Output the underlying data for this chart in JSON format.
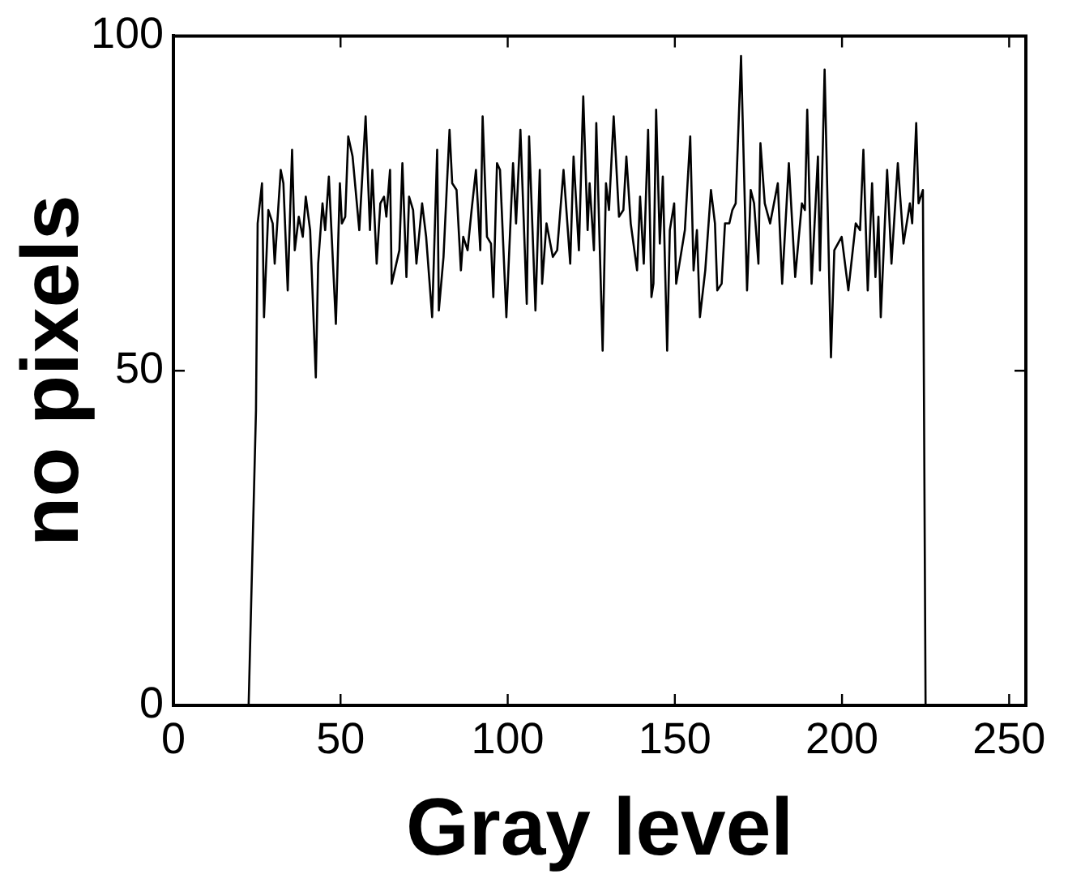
{
  "chart_data": {
    "type": "line",
    "xlabel": "Gray level",
    "ylabel": "no pixels",
    "grid": false,
    "legend": false,
    "xlim": [
      0,
      255
    ],
    "xticks": [
      0,
      50,
      100,
      150,
      200,
      250
    ],
    "ylim": [
      0,
      100
    ],
    "yticks": [
      0,
      50,
      100
    ],
    "series": [
      {
        "color": "#000000",
        "x": [
          22.5,
          24.7,
          25.2,
          26.5,
          27.1,
          28.4,
          29.7,
          30.3,
          32.1,
          32.9,
          34.2,
          35.5,
          36.3,
          37.5,
          38.7,
          39.6,
          40.9,
          42.6,
          43.3,
          44.6,
          45.4,
          46.5,
          48.6,
          49.8,
          50.4,
          51.4,
          52.3,
          53.6,
          55.6,
          57.5,
          58.8,
          59.5,
          60.8,
          61.9,
          63,
          63.7,
          64.8,
          65.3,
          67.6,
          68.5,
          69.7,
          70.5,
          71.7,
          72.7,
          74.4,
          75.6,
          77.4,
          78.9,
          79.4,
          80.8,
          82.6,
          83.4,
          84.7,
          86,
          86.7,
          88,
          89.2,
          90.5,
          91.8,
          92.5,
          93.8,
          95,
          95.7,
          96.8,
          97.7,
          99.6,
          101.6,
          102.5,
          103.8,
          105.7,
          106.4,
          108.3,
          109.6,
          110.3,
          111.6,
          113.5,
          114.8,
          116.7,
          118.7,
          119.7,
          121.3,
          122.6,
          123.9,
          124.5,
          125.8,
          126.5,
          128.4,
          129.4,
          130.3,
          131.7,
          133.3,
          134.6,
          135.5,
          136.8,
          138.7,
          139.6,
          140.7,
          142,
          143,
          143.6,
          144.4,
          145.5,
          146.4,
          147.7,
          148.5,
          149.8,
          150.4,
          153,
          154.6,
          155.6,
          156.6,
          157.5,
          159.1,
          160.8,
          162,
          162.7,
          164,
          165,
          166.3,
          167.2,
          168.2,
          169.8,
          171.6,
          172.7,
          173.7,
          175,
          175.6,
          176.9,
          178.5,
          180.8,
          182.1,
          184.1,
          186,
          188,
          188.9,
          189.6,
          190.9,
          192.8,
          193.4,
          194.8,
          196.7,
          197.7,
          199.9,
          201.9,
          204.1,
          205.4,
          206.4,
          207.7,
          209,
          210,
          210.9,
          211.6,
          213.5,
          214.8,
          216.7,
          218.4,
          220.3,
          221,
          222.2,
          222.9,
          224.2,
          225
        ],
        "values": [
          0,
          44,
          72,
          78,
          58,
          74,
          72,
          66,
          80,
          78,
          62,
          83,
          68,
          73,
          70,
          76,
          71,
          49,
          66,
          75,
          71,
          79,
          57,
          78,
          72,
          73,
          85,
          82,
          71,
          88,
          71,
          80,
          66,
          75,
          76,
          73,
          80,
          63,
          68,
          81,
          64,
          76,
          74,
          66,
          75,
          70,
          58,
          83,
          59,
          67,
          86,
          78,
          77,
          65,
          70,
          68,
          74,
          80,
          68,
          88,
          70,
          69,
          61,
          81,
          80,
          58,
          81,
          72,
          86,
          60,
          85,
          59,
          80,
          63,
          72,
          67,
          68,
          80,
          66,
          82,
          68,
          91,
          71,
          78,
          68,
          87,
          53,
          78,
          74,
          88,
          73,
          74,
          82,
          72,
          65,
          76,
          66,
          86,
          61,
          63,
          89,
          69,
          79,
          53,
          71,
          75,
          63,
          71,
          85,
          65,
          71,
          58,
          65,
          77,
          72,
          62,
          63,
          72,
          72,
          74,
          75,
          97,
          62,
          77,
          75,
          66,
          84,
          75,
          72,
          78,
          63,
          81,
          64,
          75,
          74,
          89,
          63,
          82,
          65,
          95,
          52,
          68,
          70,
          62,
          72,
          71,
          83,
          62,
          78,
          64,
          73,
          58,
          80,
          66,
          81,
          69,
          75,
          72,
          87,
          75,
          77,
          0
        ]
      }
    ]
  }
}
